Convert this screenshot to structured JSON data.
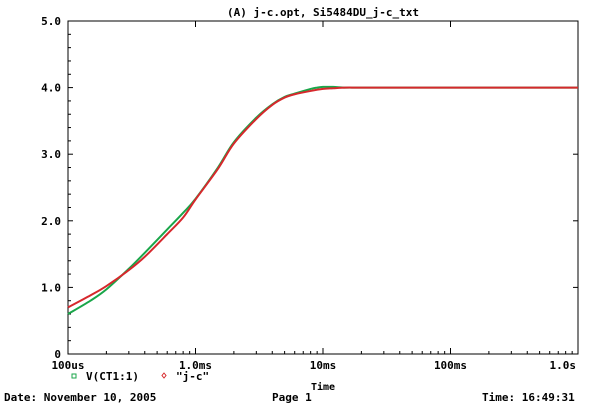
{
  "chart_data": {
    "type": "line",
    "title": "(A) j-c.opt, Si5484DU_j-c_txt",
    "xlabel": "Time",
    "ylabel": "",
    "x_scale": "log",
    "xlim": [
      0.0001,
      1.0
    ],
    "ylim": [
      0,
      5.0
    ],
    "grid": false,
    "legend_position": "bottom-left",
    "y_ticks": [
      {
        "value": 0,
        "label": "0"
      },
      {
        "value": 1.0,
        "label": "1.0"
      },
      {
        "value": 2.0,
        "label": "2.0"
      },
      {
        "value": 3.0,
        "label": "3.0"
      },
      {
        "value": 4.0,
        "label": "4.0"
      },
      {
        "value": 5.0,
        "label": "5.0"
      }
    ],
    "x_ticks": [
      {
        "value": 0.0001,
        "label": "100us"
      },
      {
        "value": 0.001,
        "label": "1.0ms"
      },
      {
        "value": 0.01,
        "label": "10ms"
      },
      {
        "value": 0.1,
        "label": "100ms"
      },
      {
        "value": 1.0,
        "label": "1.0s"
      }
    ],
    "series": [
      {
        "name": "V(CT1:1)",
        "color": "#1aa64a",
        "marker": "square",
        "x": [
          0.0001,
          0.00015,
          0.0002,
          0.0003,
          0.0004,
          0.0006,
          0.0008,
          0.001,
          0.0015,
          0.002,
          0.003,
          0.004,
          0.005,
          0.006,
          0.008,
          0.009,
          0.01,
          0.012,
          0.015,
          0.02,
          0.05,
          0.1,
          1.0
        ],
        "y": [
          0.6,
          0.8,
          0.97,
          1.28,
          1.52,
          1.87,
          2.12,
          2.33,
          2.8,
          3.18,
          3.55,
          3.75,
          3.86,
          3.91,
          3.98,
          4.0,
          4.01,
          4.01,
          4.0,
          4.0,
          4.0,
          4.0,
          4.0
        ]
      },
      {
        "name": "\"j-c\"",
        "color": "#d6282c",
        "marker": "diamond",
        "x": [
          0.0001,
          0.00015,
          0.0002,
          0.0003,
          0.0004,
          0.0006,
          0.0008,
          0.001,
          0.0015,
          0.002,
          0.003,
          0.004,
          0.005,
          0.006,
          0.008,
          0.01,
          0.012,
          0.015,
          0.02,
          0.05,
          0.1,
          1.0
        ],
        "y": [
          0.7,
          0.88,
          1.02,
          1.26,
          1.46,
          1.8,
          2.05,
          2.32,
          2.78,
          3.16,
          3.53,
          3.74,
          3.85,
          3.9,
          3.95,
          3.98,
          3.99,
          4.0,
          4.0,
          4.0,
          4.0,
          4.0
        ]
      }
    ]
  },
  "footer": {
    "date": "Date: November 10, 2005",
    "page": "Page 1",
    "time": "Time: 16:49:31"
  }
}
